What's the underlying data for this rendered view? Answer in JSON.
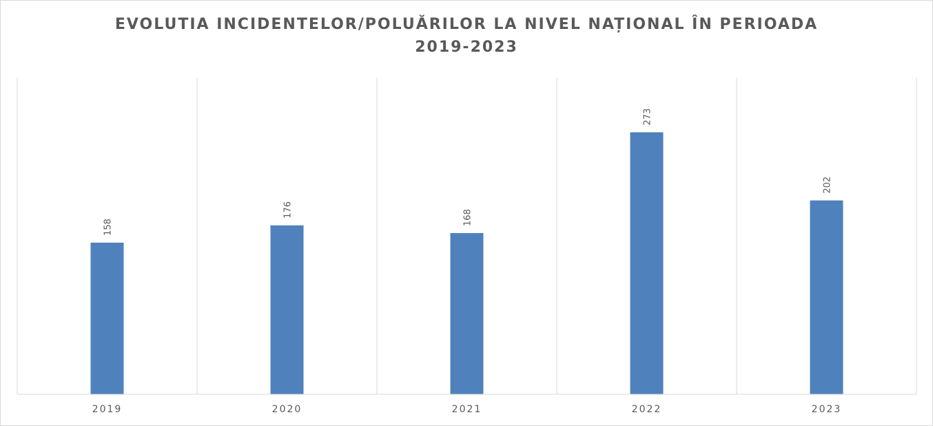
{
  "chart_data": {
    "type": "bar",
    "title": "EVOLUTIA  INCIDENTELOR/POLUĂRILOR  LA NIVEL NAȚIONAL ÎN PERIOADA\n2019-2023",
    "xlabel": "",
    "ylabel": "",
    "categories": [
      "2019",
      "2020",
      "2021",
      "2022",
      "2023"
    ],
    "values": [
      158,
      176,
      168,
      273,
      202
    ],
    "data_labels": [
      "158",
      "176",
      "168",
      "273",
      "202"
    ],
    "ylim": [
      0,
      300
    ],
    "grid": "vertical",
    "legend": "none",
    "bar_color": "#4f81bd",
    "grid_color": "#d9d9d9",
    "text_color": "#595959"
  }
}
